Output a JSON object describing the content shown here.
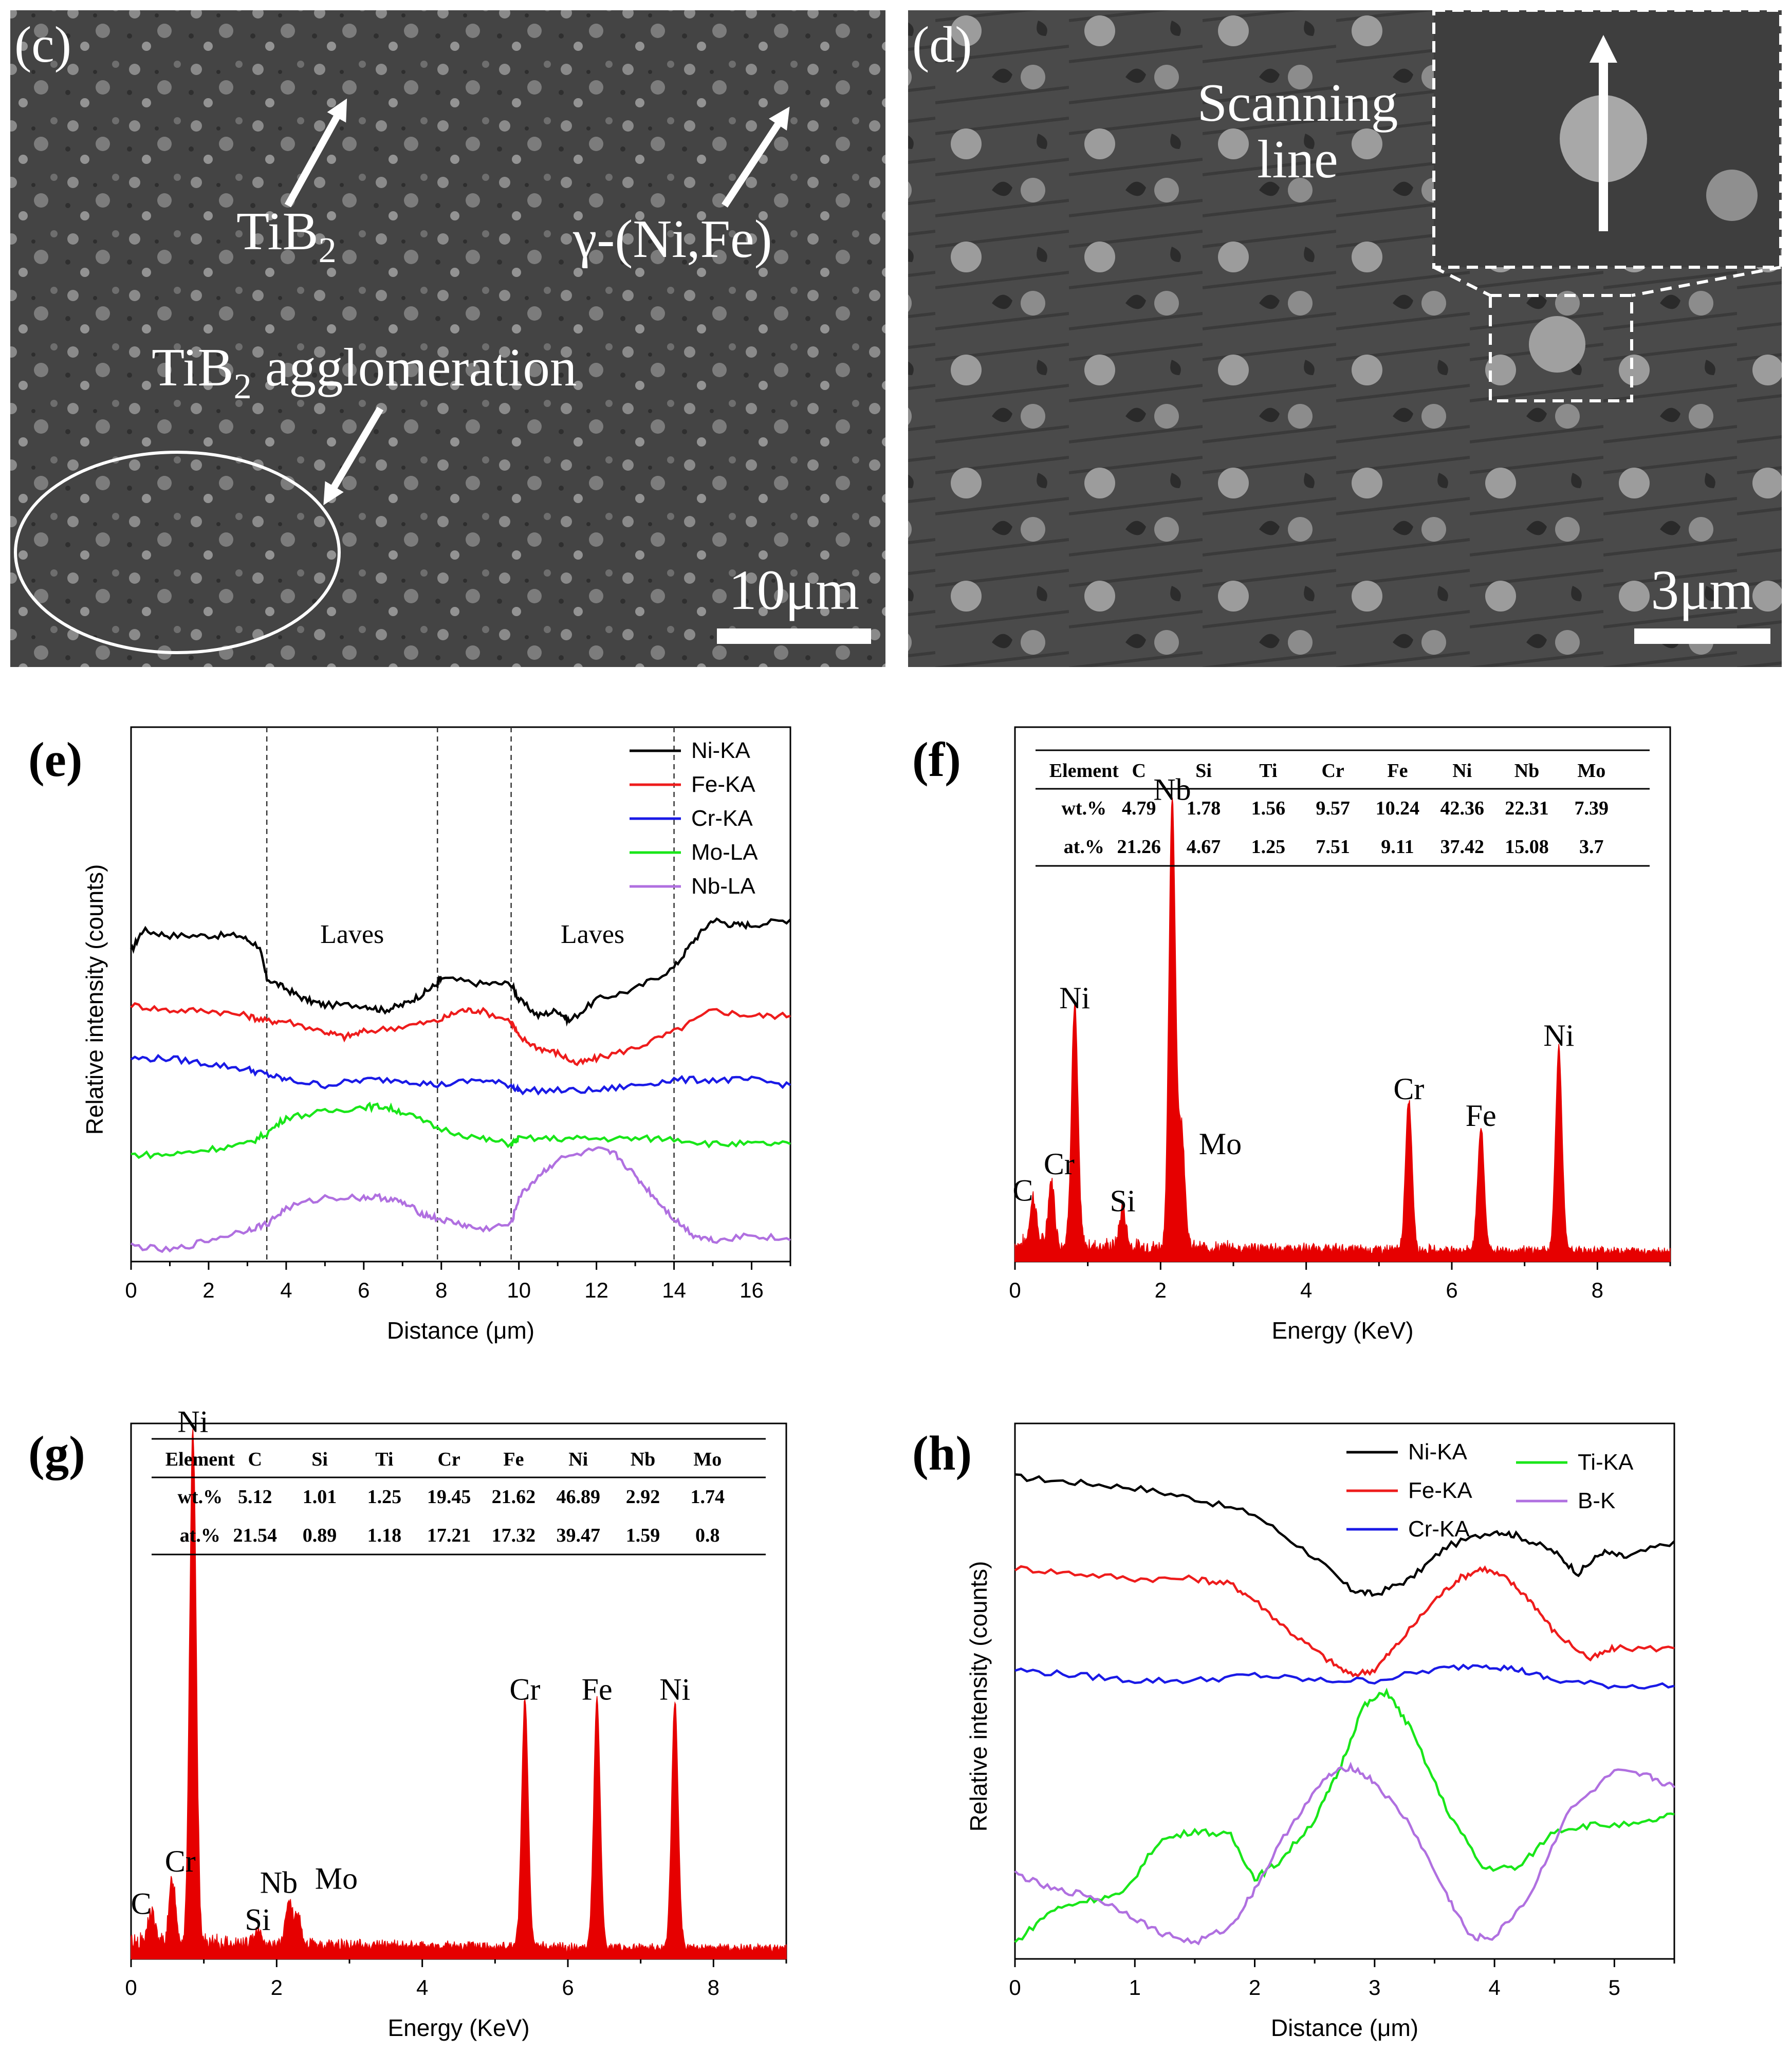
{
  "panels": {
    "c": {
      "label": "(c)",
      "annotations": {
        "tib2": "TiB",
        "tib2_sub": "2",
        "gamma": "γ-(Ni,Fe)",
        "agglom": "TiB",
        "agglom_sub": "2",
        "agglom_rest": " agglomeration"
      },
      "scalebar": "10μm"
    },
    "d": {
      "label": "(d)",
      "annotations": {
        "scan1": "Scanning",
        "scan2": "line"
      },
      "scalebar": "3μm"
    },
    "e": {
      "label": "(e)"
    },
    "f": {
      "label": "(f)",
      "table": {
        "header": [
          "Element",
          "C",
          "Si",
          "Ti",
          "Cr",
          "Fe",
          "Ni",
          "Nb",
          "Mo"
        ],
        "rows": [
          [
            "wt.%",
            "4.79",
            "1.78",
            "1.56",
            "9.57",
            "10.24",
            "42.36",
            "22.31",
            "7.39"
          ],
          [
            "at.%",
            "21.26",
            "4.67",
            "1.25",
            "7.51",
            "9.11",
            "37.42",
            "15.08",
            "3.7"
          ]
        ]
      }
    },
    "g": {
      "label": "(g)",
      "table": {
        "header": [
          "Element",
          "C",
          "Si",
          "Ti",
          "Cr",
          "Fe",
          "Ni",
          "Nb",
          "Mo"
        ],
        "rows": [
          [
            "wt.%",
            "5.12",
            "1.01",
            "1.25",
            "19.45",
            "21.62",
            "46.89",
            "2.92",
            "1.74"
          ],
          [
            "at.%",
            "21.54",
            "0.89",
            "1.18",
            "17.21",
            "17.32",
            "39.47",
            "1.59",
            "0.8"
          ]
        ]
      }
    },
    "h": {
      "label": "(h)"
    }
  },
  "colors": {
    "Ni": "#000000",
    "Fe": "#ee1c1c",
    "Cr": "#1a1ae6",
    "Mo": "#19e619",
    "Nb": "#b070e0",
    "Ti": "#19e619",
    "B": "#b070e0",
    "eds": "#e60000"
  },
  "chart_data": [
    {
      "id": "e",
      "type": "line",
      "title": "",
      "xlabel": "Distance (μm)",
      "ylabel": "Relative intensity (counts)",
      "xlim": [
        0,
        17
      ],
      "xticks": [
        "0",
        "2",
        "4",
        "6",
        "8",
        "10",
        "12",
        "14",
        "16"
      ],
      "vlines": [
        3.5,
        7.9,
        9.8,
        14.0
      ],
      "region_labels": [
        {
          "text": "Laves",
          "x": 5.7
        },
        {
          "text": "Laves",
          "x": 11.9
        }
      ],
      "series": [
        {
          "name": "Ni-KA",
          "color": "#000000",
          "x": [
            0,
            0.3,
            1,
            2,
            2.8,
            3.3,
            3.5,
            4,
            4.5,
            5,
            6,
            6.5,
            7,
            7.5,
            7.9,
            8,
            9,
            9.8,
            10,
            10.5,
            11,
            11.3,
            12,
            13,
            14,
            14.5,
            15,
            15.5,
            16,
            17
          ],
          "y": [
            0.58,
            0.62,
            0.61,
            0.61,
            0.61,
            0.59,
            0.53,
            0.51,
            0.49,
            0.48,
            0.48,
            0.47,
            0.48,
            0.5,
            0.52,
            0.53,
            0.52,
            0.52,
            0.49,
            0.46,
            0.47,
            0.45,
            0.49,
            0.51,
            0.55,
            0.6,
            0.64,
            0.63,
            0.63,
            0.64
          ]
        },
        {
          "name": "Fe-KA",
          "color": "#ee1c1c",
          "x": [
            0,
            1,
            2,
            3,
            3.5,
            4,
            5,
            5.5,
            6,
            7,
            7.9,
            8.5,
            9,
            9.8,
            10,
            10.5,
            11,
            11.5,
            12,
            13,
            14,
            15,
            16,
            17
          ],
          "y": [
            0.48,
            0.47,
            0.47,
            0.46,
            0.45,
            0.45,
            0.43,
            0.42,
            0.43,
            0.44,
            0.45,
            0.47,
            0.47,
            0.45,
            0.42,
            0.4,
            0.39,
            0.37,
            0.38,
            0.4,
            0.43,
            0.47,
            0.46,
            0.46
          ]
        },
        {
          "name": "Cr-KA",
          "color": "#1a1ae6",
          "x": [
            0,
            1,
            2,
            3,
            3.5,
            4,
            5,
            6,
            7,
            7.9,
            9,
            9.8,
            10,
            11,
            12,
            13,
            14,
            15,
            16,
            17
          ],
          "y": [
            0.38,
            0.38,
            0.37,
            0.36,
            0.35,
            0.34,
            0.33,
            0.34,
            0.34,
            0.33,
            0.34,
            0.33,
            0.32,
            0.32,
            0.32,
            0.33,
            0.34,
            0.34,
            0.34,
            0.33
          ]
        },
        {
          "name": "Mo-LA",
          "color": "#19e619",
          "x": [
            0,
            1,
            2,
            3,
            3.5,
            4,
            5,
            6,
            6.5,
            7,
            7.9,
            9,
            9.8,
            10,
            11,
            12,
            13,
            14,
            15,
            16,
            17
          ],
          "y": [
            0.2,
            0.2,
            0.21,
            0.22,
            0.24,
            0.27,
            0.28,
            0.29,
            0.29,
            0.28,
            0.25,
            0.23,
            0.22,
            0.23,
            0.23,
            0.23,
            0.23,
            0.23,
            0.22,
            0.22,
            0.22
          ]
        },
        {
          "name": "Nb-LA",
          "color": "#b070e0",
          "x": [
            0,
            1,
            2,
            3,
            3.5,
            4,
            5,
            6,
            6.5,
            7,
            7.5,
            7.9,
            8.5,
            9,
            9.8,
            10,
            10.5,
            11,
            12,
            12.5,
            13,
            13.5,
            14,
            14.5,
            15,
            16,
            17
          ],
          "y": [
            0.03,
            0.02,
            0.04,
            0.06,
            0.07,
            0.1,
            0.12,
            0.12,
            0.12,
            0.11,
            0.09,
            0.08,
            0.07,
            0.06,
            0.07,
            0.12,
            0.16,
            0.19,
            0.21,
            0.2,
            0.16,
            0.12,
            0.08,
            0.05,
            0.04,
            0.05,
            0.04
          ]
        }
      ]
    },
    {
      "id": "f",
      "type": "bar",
      "title": "",
      "xlabel": "Energy (KeV)",
      "ylabel": "",
      "xlim": [
        0,
        9
      ],
      "xticks": [
        "0",
        "2",
        "4",
        "6",
        "8"
      ],
      "peaks": [
        {
          "label": "C",
          "x": 0.25,
          "h": 0.09
        },
        {
          "label": "Cr",
          "x": 0.5,
          "h": 0.12
        },
        {
          "label": "Ni",
          "x": 0.82,
          "h": 0.45
        },
        {
          "label": "Si",
          "x": 1.48,
          "h": 0.07
        },
        {
          "label": "Nb",
          "x": 2.16,
          "h": 0.84
        },
        {
          "label": "Mo",
          "x": 2.29,
          "h": 0.22
        },
        {
          "label": "Cr",
          "x": 5.41,
          "h": 0.28
        },
        {
          "label": "Fe",
          "x": 6.4,
          "h": 0.23
        },
        {
          "label": "Ni",
          "x": 7.47,
          "h": 0.38
        }
      ]
    },
    {
      "id": "g",
      "type": "bar",
      "title": "",
      "xlabel": "Energy (KeV)",
      "ylabel": "",
      "xlim": [
        0,
        9
      ],
      "xticks": [
        "0",
        "2",
        "4",
        "6",
        "8"
      ],
      "peaks": [
        {
          "label": "C",
          "x": 0.28,
          "h": 0.06
        },
        {
          "label": "Cr",
          "x": 0.57,
          "h": 0.12
        },
        {
          "label": "Ni",
          "x": 0.85,
          "h": 0.96
        },
        {
          "label": "Si",
          "x": 1.74,
          "h": 0.03
        },
        {
          "label": "Nb",
          "x": 2.17,
          "h": 0.08
        },
        {
          "label": "Mo",
          "x": 2.29,
          "h": 0.05
        },
        {
          "label": "Cr",
          "x": 5.41,
          "h": 0.46
        },
        {
          "label": "Fe",
          "x": 6.4,
          "h": 0.46
        },
        {
          "label": "Ni",
          "x": 7.47,
          "h": 0.46
        }
      ]
    },
    {
      "id": "h",
      "type": "line",
      "title": "",
      "xlabel": "Distance (μm)",
      "ylabel": "Relative intensity (counts)",
      "xlim": [
        0,
        5.5
      ],
      "xticks": [
        "0",
        "1",
        "2",
        "3",
        "4",
        "5"
      ],
      "series": [
        {
          "name": "Ni-KA",
          "color": "#000000",
          "x": [
            0,
            0.5,
            1,
            1.5,
            2,
            2.5,
            2.8,
            3.0,
            3.3,
            3.6,
            4.0,
            4.2,
            4.5,
            4.7,
            4.9,
            5.1,
            5.5
          ],
          "y": [
            0.9,
            0.89,
            0.88,
            0.86,
            0.83,
            0.75,
            0.69,
            0.68,
            0.71,
            0.77,
            0.8,
            0.79,
            0.76,
            0.72,
            0.76,
            0.75,
            0.78
          ]
        },
        {
          "name": "Fe-KA",
          "color": "#ee1c1c",
          "x": [
            0,
            0.5,
            1,
            1.5,
            1.8,
            2,
            2.3,
            2.6,
            2.8,
            3.0,
            3.2,
            3.5,
            3.7,
            3.9,
            4.1,
            4.3,
            4.5,
            4.8,
            5.0,
            5.5
          ],
          "y": [
            0.73,
            0.72,
            0.71,
            0.71,
            0.7,
            0.67,
            0.61,
            0.56,
            0.53,
            0.54,
            0.59,
            0.67,
            0.71,
            0.73,
            0.71,
            0.67,
            0.61,
            0.56,
            0.58,
            0.58
          ]
        },
        {
          "name": "Cr-KA",
          "color": "#1a1ae6",
          "x": [
            0,
            0.5,
            1,
            1.5,
            2,
            2.5,
            3,
            3.5,
            3.9,
            4.2,
            4.5,
            5,
            5.5
          ],
          "y": [
            0.54,
            0.53,
            0.52,
            0.52,
            0.53,
            0.52,
            0.52,
            0.54,
            0.55,
            0.54,
            0.52,
            0.51,
            0.51
          ]
        },
        {
          "name": "Ti-KA",
          "color": "#19e619",
          "x": [
            0,
            0.3,
            0.6,
            0.9,
            1.2,
            1.5,
            1.8,
            2.0,
            2.2,
            2.5,
            2.7,
            2.9,
            3.1,
            3.3,
            3.6,
            3.9,
            4.2,
            4.5,
            4.8,
            5.2,
            5.5
          ],
          "y": [
            0.03,
            0.09,
            0.11,
            0.12,
            0.22,
            0.24,
            0.23,
            0.15,
            0.18,
            0.26,
            0.35,
            0.47,
            0.5,
            0.43,
            0.28,
            0.17,
            0.17,
            0.24,
            0.25,
            0.25,
            0.27
          ]
        },
        {
          "name": "B-K",
          "color": "#b070e0",
          "x": [
            0,
            0.3,
            0.6,
            0.9,
            1.2,
            1.5,
            1.8,
            2.0,
            2.3,
            2.6,
            2.8,
            3.0,
            3.3,
            3.6,
            3.8,
            4.0,
            4.3,
            4.6,
            5.0,
            5.3,
            5.5
          ],
          "y": [
            0.16,
            0.13,
            0.12,
            0.09,
            0.05,
            0.03,
            0.06,
            0.13,
            0.25,
            0.34,
            0.36,
            0.33,
            0.25,
            0.12,
            0.04,
            0.04,
            0.12,
            0.27,
            0.35,
            0.34,
            0.32
          ]
        }
      ]
    }
  ]
}
